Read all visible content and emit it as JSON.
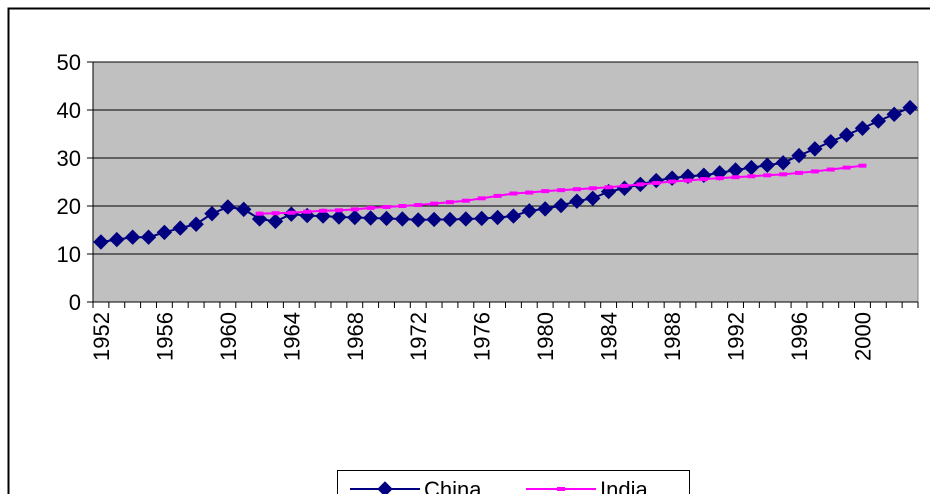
{
  "chart_data": {
    "type": "line",
    "categories": [
      "1952",
      null,
      null,
      null,
      "1956",
      null,
      null,
      null,
      "1960",
      null,
      null,
      null,
      "1964",
      null,
      null,
      null,
      "1968",
      null,
      null,
      null,
      "1972",
      null,
      null,
      null,
      "1976",
      null,
      null,
      null,
      "1980",
      null,
      null,
      null,
      "1984",
      null,
      null,
      null,
      "1988",
      null,
      null,
      null,
      "1992",
      null,
      null,
      null,
      "1996",
      null,
      null,
      null,
      "2000",
      null,
      null,
      null
    ],
    "series": [
      {
        "name": "China",
        "color": "#000080",
        "marker": "diamond",
        "values": [
          12.5,
          13,
          13.5,
          13.5,
          14.5,
          15.4,
          16.2,
          18.4,
          19.8,
          19.3,
          17.3,
          16.8,
          18.3,
          18,
          17.9,
          17.7,
          17.6,
          17.5,
          17.4,
          17.3,
          17.1,
          17.2,
          17.2,
          17.3,
          17.4,
          17.6,
          17.9,
          19,
          19.4,
          20.1,
          21,
          21.6,
          23,
          23.7,
          24.5,
          25.3,
          25.8,
          26.2,
          26.4,
          26.9,
          27.5,
          28,
          28.5,
          29,
          30.5,
          31.9,
          33.4,
          34.8,
          36.2,
          37.7,
          39.1,
          40.5
        ]
      },
      {
        "name": "India",
        "color": "#ff00ff",
        "marker": "dash",
        "values": [
          null,
          null,
          null,
          null,
          null,
          null,
          null,
          null,
          null,
          null,
          18.4,
          18.5,
          18.6,
          18.8,
          19,
          19.1,
          19.3,
          19.6,
          19.8,
          20,
          20.2,
          20.5,
          20.8,
          21.1,
          21.6,
          22.1,
          22.6,
          22.8,
          23.1,
          23.3,
          23.5,
          23.7,
          23.9,
          24.2,
          24.5,
          24.8,
          25.1,
          25.3,
          25.6,
          25.8,
          26,
          26.2,
          26.4,
          26.6,
          26.9,
          27.2,
          27.6,
          28,
          28.4,
          null,
          null,
          null
        ]
      }
    ],
    "ylim": [
      0,
      50
    ],
    "yticks": [
      0,
      10,
      20,
      30,
      40,
      50
    ],
    "grid": true,
    "legend": "bottom",
    "plot_background": "#c0c0c0"
  }
}
